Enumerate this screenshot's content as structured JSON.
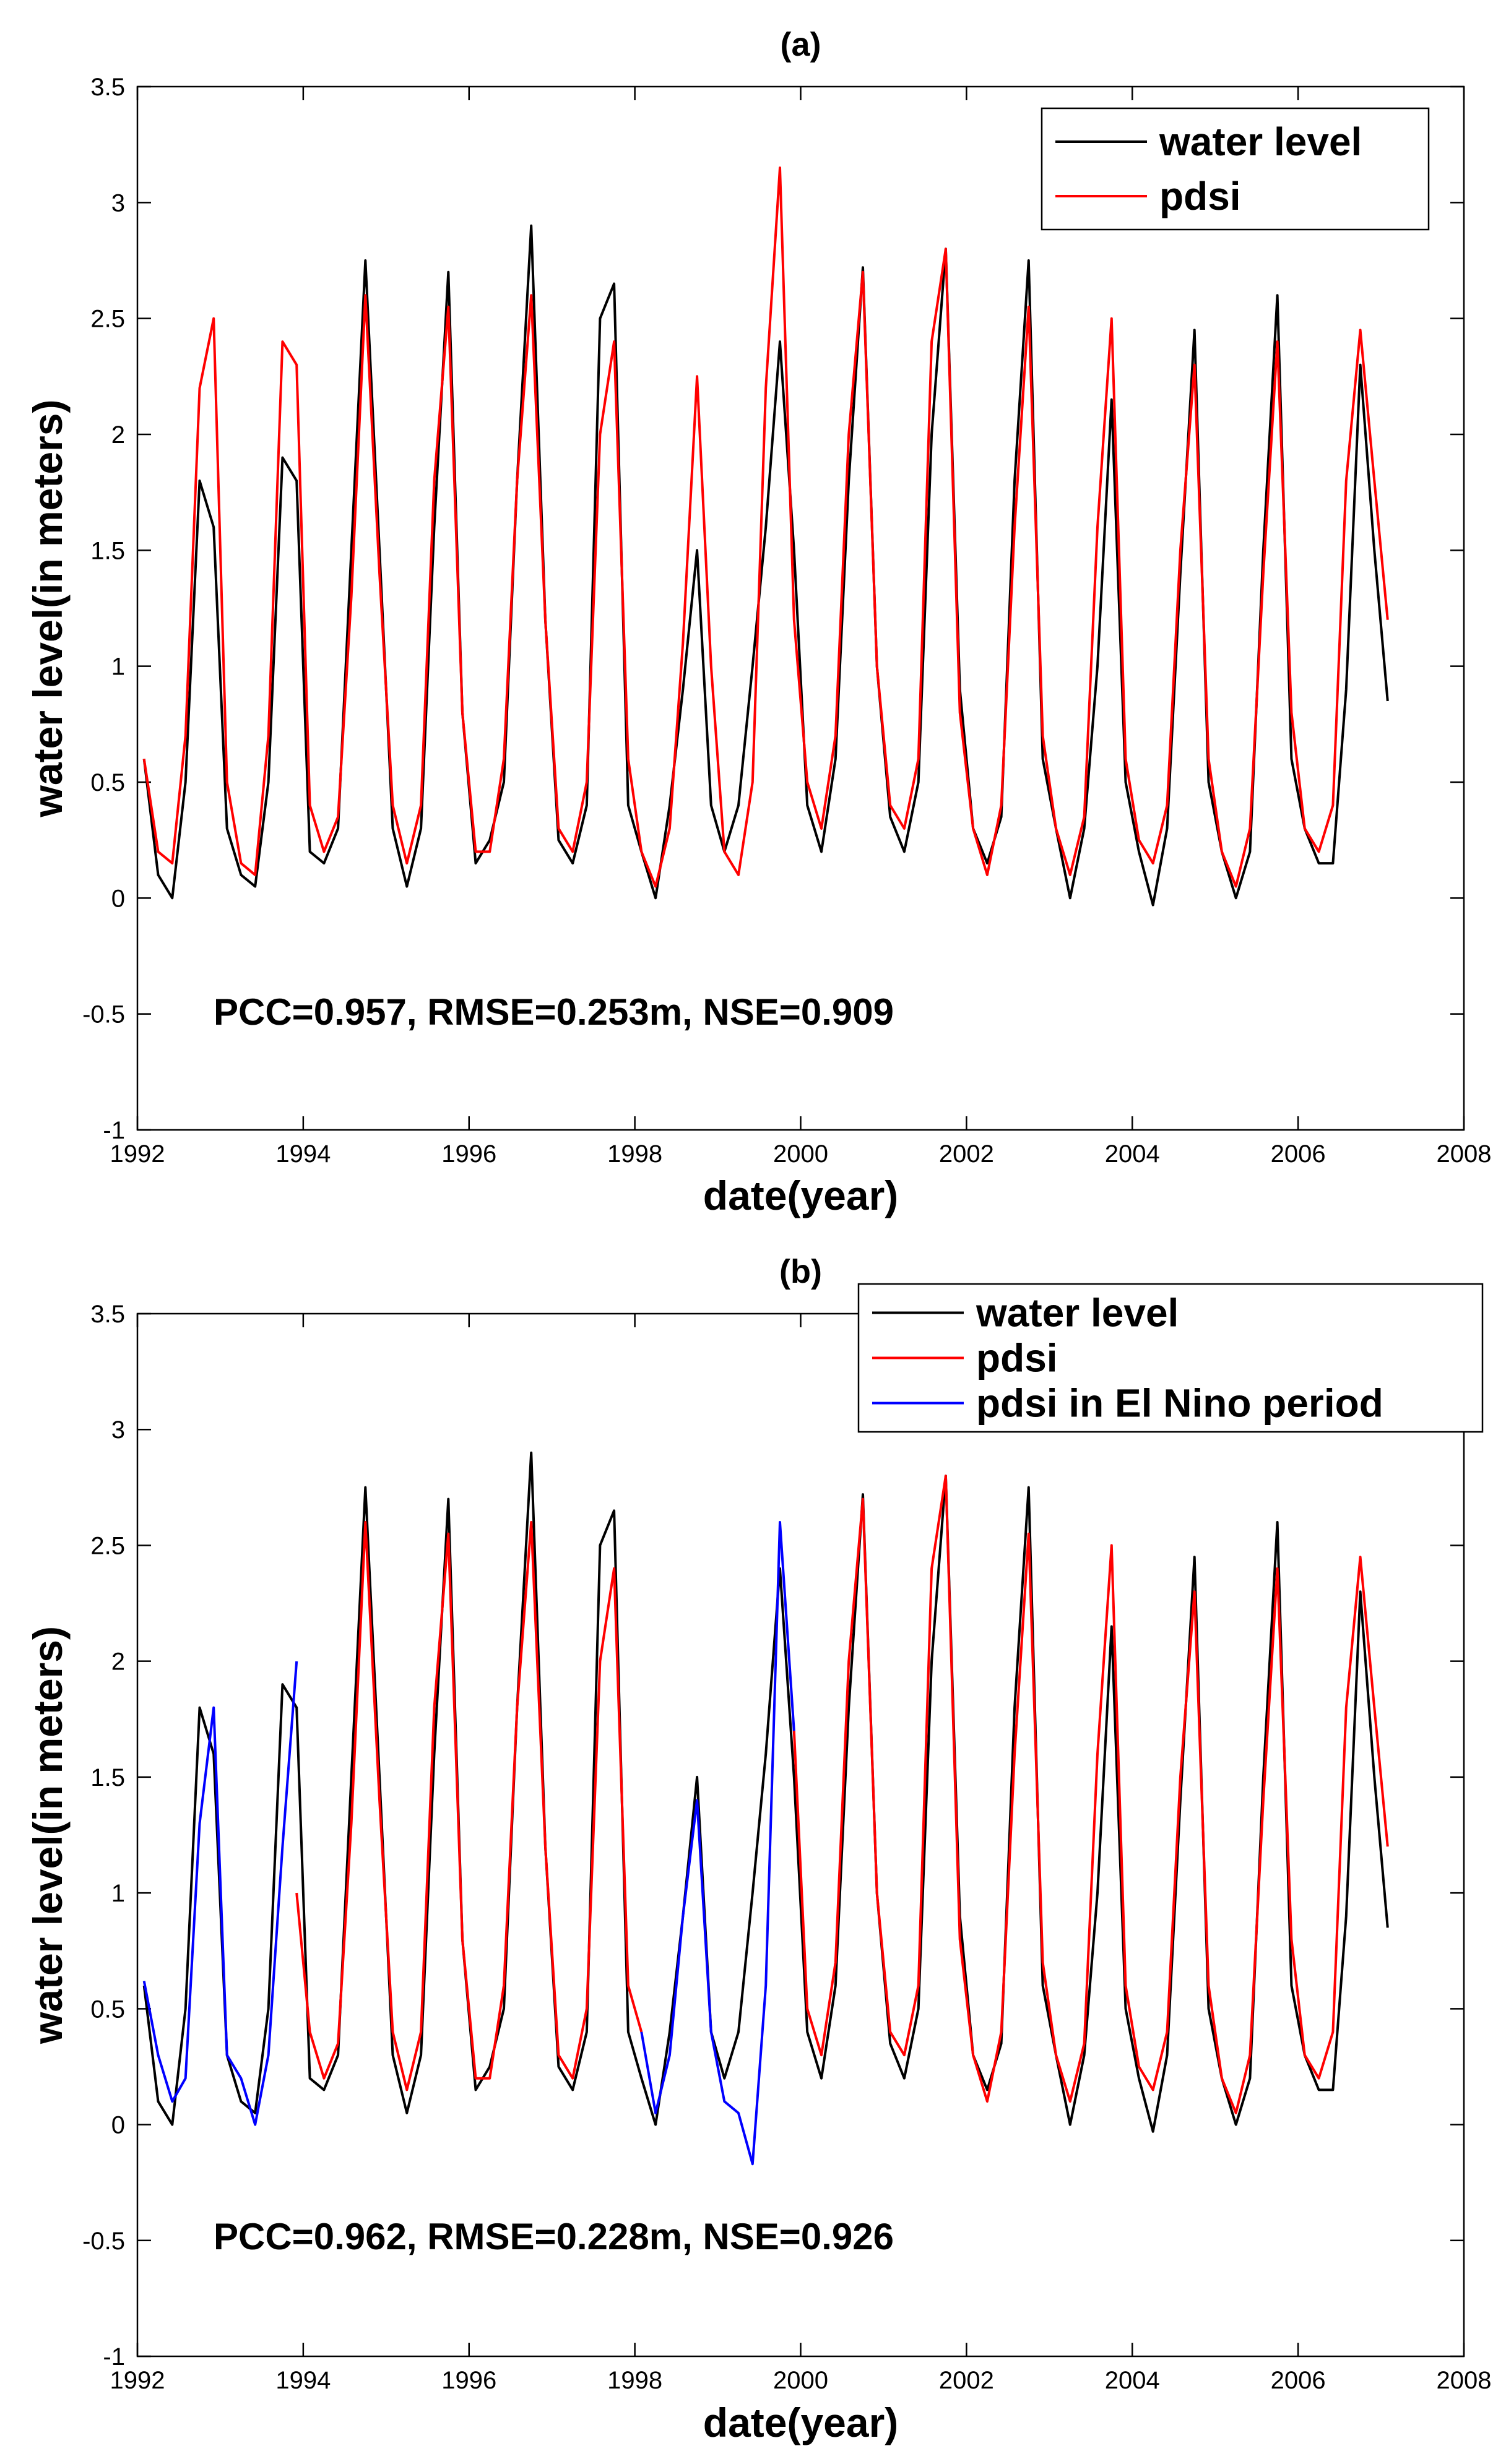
{
  "chart_data": [
    {
      "type": "line",
      "title": "(a)",
      "xlabel": "date(year)",
      "ylabel": "water level(in meters)",
      "xlim": [
        1992,
        2008
      ],
      "ylim": [
        -1,
        3.5
      ],
      "xticks": [
        "1992",
        "1994",
        "1996",
        "1998",
        "2000",
        "2002",
        "2004",
        "2006",
        "2008"
      ],
      "yticks": [
        "-1",
        "-0.5",
        "0",
        "0.5",
        "1",
        "1.5",
        "2",
        "2.5",
        "3",
        "3.5"
      ],
      "annotation": "PCC=0.957, RMSE=0.253m, NSE=0.909",
      "legend": {
        "position": "top-right",
        "entries": [
          "water level",
          "pdsi"
        ]
      },
      "series": [
        {
          "name": "water level",
          "color": "#000000",
          "x": [
            1992.08,
            1992.25,
            1992.42,
            1992.58,
            1992.75,
            1992.92,
            1993.08,
            1993.25,
            1993.42,
            1993.58,
            1993.75,
            1993.92,
            1994.08,
            1994.25,
            1994.42,
            1994.58,
            1994.75,
            1994.92,
            1995.08,
            1995.25,
            1995.42,
            1995.58,
            1995.75,
            1995.92,
            1996.08,
            1996.25,
            1996.42,
            1996.58,
            1996.75,
            1996.92,
            1997.08,
            1997.25,
            1997.42,
            1997.58,
            1997.75,
            1997.92,
            1998.08,
            1998.25,
            1998.42,
            1998.58,
            1998.75,
            1998.92,
            1999.08,
            1999.25,
            1999.42,
            1999.58,
            1999.75,
            1999.92,
            2000.08,
            2000.25,
            2000.42,
            2000.58,
            2000.75,
            2000.92,
            2001.08,
            2001.25,
            2001.42,
            2001.58,
            2001.75,
            2001.92,
            2002.08,
            2002.25,
            2002.42,
            2002.58,
            2002.75,
            2002.92,
            2003.08,
            2003.25,
            2003.42,
            2003.58,
            2003.75,
            2003.92,
            2004.08,
            2004.25,
            2004.42,
            2004.58,
            2004.75,
            2004.92,
            2005.08,
            2005.25,
            2005.42,
            2005.58,
            2005.75,
            2005.92,
            2006.08,
            2006.25,
            2006.42,
            2006.58,
            2006.75,
            2006.92,
            2007.08
          ],
          "y": [
            0.6,
            0.1,
            0.0,
            0.5,
            1.8,
            1.6,
            0.3,
            0.1,
            0.05,
            0.5,
            1.9,
            1.8,
            0.2,
            0.15,
            0.3,
            1.5,
            2.75,
            1.5,
            0.3,
            0.05,
            0.3,
            1.6,
            2.7,
            0.8,
            0.15,
            0.25,
            0.5,
            1.8,
            2.9,
            1.2,
            0.25,
            0.15,
            0.4,
            2.5,
            2.65,
            0.4,
            0.2,
            0.0,
            0.4,
            0.9,
            1.5,
            0.4,
            0.2,
            0.4,
            1.0,
            1.6,
            2.4,
            1.5,
            0.4,
            0.2,
            0.6,
            1.8,
            2.72,
            1.0,
            0.35,
            0.2,
            0.5,
            2.0,
            2.8,
            0.9,
            0.3,
            0.15,
            0.35,
            1.8,
            2.75,
            0.6,
            0.3,
            0.0,
            0.3,
            1.0,
            2.15,
            0.5,
            0.2,
            -0.03,
            0.3,
            1.4,
            2.45,
            0.5,
            0.2,
            0.0,
            0.2,
            1.5,
            2.6,
            0.6,
            0.3,
            0.15,
            0.15,
            0.9,
            2.3,
            1.5,
            0.85
          ]
        },
        {
          "name": "pdsi",
          "color": "#ff0000",
          "x": [
            1992.08,
            1992.25,
            1992.42,
            1992.58,
            1992.75,
            1992.92,
            1993.08,
            1993.25,
            1993.42,
            1993.58,
            1993.75,
            1993.92,
            1994.08,
            1994.25,
            1994.42,
            1994.58,
            1994.75,
            1994.92,
            1995.08,
            1995.25,
            1995.42,
            1995.58,
            1995.75,
            1995.92,
            1996.08,
            1996.25,
            1996.42,
            1996.58,
            1996.75,
            1996.92,
            1997.08,
            1997.25,
            1997.42,
            1997.58,
            1997.75,
            1997.92,
            1998.08,
            1998.25,
            1998.42,
            1998.58,
            1998.75,
            1998.92,
            1999.08,
            1999.25,
            1999.42,
            1999.58,
            1999.75,
            1999.92,
            2000.08,
            2000.25,
            2000.42,
            2000.58,
            2000.75,
            2000.92,
            2001.08,
            2001.25,
            2001.42,
            2001.58,
            2001.75,
            2001.92,
            2002.08,
            2002.25,
            2002.42,
            2002.58,
            2002.75,
            2002.92,
            2003.08,
            2003.25,
            2003.42,
            2003.58,
            2003.75,
            2003.92,
            2004.08,
            2004.25,
            2004.42,
            2004.58,
            2004.75,
            2004.92,
            2005.08,
            2005.25,
            2005.42,
            2005.58,
            2005.75,
            2005.92,
            2006.08,
            2006.25,
            2006.42,
            2006.58,
            2006.75,
            2006.92,
            2007.08
          ],
          "y": [
            0.6,
            0.2,
            0.15,
            0.7,
            2.2,
            2.5,
            0.5,
            0.15,
            0.1,
            0.7,
            2.4,
            2.3,
            0.4,
            0.2,
            0.35,
            1.3,
            2.6,
            1.4,
            0.4,
            0.15,
            0.4,
            1.8,
            2.55,
            0.8,
            0.2,
            0.2,
            0.6,
            1.8,
            2.6,
            1.2,
            0.3,
            0.2,
            0.5,
            2.0,
            2.4,
            0.6,
            0.2,
            0.05,
            0.3,
            1.1,
            2.25,
            1.0,
            0.2,
            0.1,
            0.5,
            2.2,
            3.15,
            1.2,
            0.5,
            0.3,
            0.7,
            2.0,
            2.7,
            1.0,
            0.4,
            0.3,
            0.6,
            2.4,
            2.8,
            0.8,
            0.3,
            0.1,
            0.4,
            1.6,
            2.55,
            0.7,
            0.3,
            0.1,
            0.35,
            1.6,
            2.5,
            0.6,
            0.25,
            0.15,
            0.4,
            1.5,
            2.3,
            0.6,
            0.2,
            0.05,
            0.3,
            1.4,
            2.4,
            0.8,
            0.3,
            0.2,
            0.4,
            1.8,
            2.45,
            1.8,
            1.2
          ]
        }
      ]
    },
    {
      "type": "line",
      "title": "(b)",
      "xlabel": "date(year)",
      "ylabel": "water level(in meters)",
      "xlim": [
        1992,
        2008
      ],
      "ylim": [
        -1,
        3.5
      ],
      "xticks": [
        "1992",
        "1994",
        "1996",
        "1998",
        "2000",
        "2002",
        "2004",
        "2006",
        "2008"
      ],
      "yticks": [
        "-1",
        "-0.5",
        "0",
        "0.5",
        "1",
        "1.5",
        "2",
        "2.5",
        "3",
        "3.5"
      ],
      "annotation": "PCC=0.962, RMSE=0.228m, NSE=0.926",
      "legend": {
        "position": "top-right",
        "entries": [
          "water level",
          "pdsi",
          "pdsi in El Nino period"
        ]
      },
      "series": [
        {
          "name": "water level",
          "color": "#000000",
          "x": [
            1992.08,
            1992.25,
            1992.42,
            1992.58,
            1992.75,
            1992.92,
            1993.08,
            1993.25,
            1993.42,
            1993.58,
            1993.75,
            1993.92,
            1994.08,
            1994.25,
            1994.42,
            1994.58,
            1994.75,
            1994.92,
            1995.08,
            1995.25,
            1995.42,
            1995.58,
            1995.75,
            1995.92,
            1996.08,
            1996.25,
            1996.42,
            1996.58,
            1996.75,
            1996.92,
            1997.08,
            1997.25,
            1997.42,
            1997.58,
            1997.75,
            1997.92,
            1998.08,
            1998.25,
            1998.42,
            1998.58,
            1998.75,
            1998.92,
            1999.08,
            1999.25,
            1999.42,
            1999.58,
            1999.75,
            1999.92,
            2000.08,
            2000.25,
            2000.42,
            2000.58,
            2000.75,
            2000.92,
            2001.08,
            2001.25,
            2001.42,
            2001.58,
            2001.75,
            2001.92,
            2002.08,
            2002.25,
            2002.42,
            2002.58,
            2002.75,
            2002.92,
            2003.08,
            2003.25,
            2003.42,
            2003.58,
            2003.75,
            2003.92,
            2004.08,
            2004.25,
            2004.42,
            2004.58,
            2004.75,
            2004.92,
            2005.08,
            2005.25,
            2005.42,
            2005.58,
            2005.75,
            2005.92,
            2006.08,
            2006.25,
            2006.42,
            2006.58,
            2006.75,
            2006.92,
            2007.08
          ],
          "y": [
            0.6,
            0.1,
            0.0,
            0.5,
            1.8,
            1.6,
            0.3,
            0.1,
            0.05,
            0.5,
            1.9,
            1.8,
            0.2,
            0.15,
            0.3,
            1.5,
            2.75,
            1.5,
            0.3,
            0.05,
            0.3,
            1.6,
            2.7,
            0.8,
            0.15,
            0.25,
            0.5,
            1.8,
            2.9,
            1.2,
            0.25,
            0.15,
            0.4,
            2.5,
            2.65,
            0.4,
            0.2,
            0.0,
            0.4,
            0.9,
            1.5,
            0.4,
            0.2,
            0.4,
            1.0,
            1.6,
            2.4,
            1.5,
            0.4,
            0.2,
            0.6,
            1.8,
            2.72,
            1.0,
            0.35,
            0.2,
            0.5,
            2.0,
            2.8,
            0.9,
            0.3,
            0.15,
            0.35,
            1.8,
            2.75,
            0.6,
            0.3,
            0.0,
            0.3,
            1.0,
            2.15,
            0.5,
            0.2,
            -0.03,
            0.3,
            1.4,
            2.45,
            0.5,
            0.2,
            0.0,
            0.2,
            1.5,
            2.6,
            0.6,
            0.3,
            0.15,
            0.15,
            0.9,
            2.3,
            1.5,
            0.85
          ]
        },
        {
          "name": "pdsi",
          "color": "#ff0000",
          "x": [
            1993.92,
            1994.08,
            1994.25,
            1994.42,
            1994.58,
            1994.75,
            1994.92,
            1995.08,
            1995.25,
            1995.42,
            1995.58,
            1995.75,
            1995.92,
            1996.08,
            1996.25,
            1996.42,
            1996.58,
            1996.75,
            1996.92,
            1997.08,
            1997.25,
            1997.42,
            1997.58,
            1997.75,
            1997.92,
            1998.08,
            null,
            1999.92,
            2000.08,
            2000.25,
            2000.42,
            2000.58,
            2000.75,
            2000.92,
            2001.08,
            2001.25,
            2001.42,
            2001.58,
            2001.75,
            2001.92,
            2002.08,
            2002.25,
            2002.42,
            2002.58,
            2002.75,
            2002.92,
            2003.08,
            2003.25,
            2003.42,
            2003.58,
            2003.75,
            2003.92,
            2004.08,
            2004.25,
            2004.42,
            2004.58,
            2004.75,
            2004.92,
            2005.08,
            2005.25,
            2005.42,
            2005.58,
            2005.75,
            2005.92,
            2006.08,
            2006.25,
            2006.42,
            2006.58,
            2006.75,
            2006.92,
            2007.08
          ],
          "y": [
            1.0,
            0.4,
            0.2,
            0.35,
            1.3,
            2.6,
            1.4,
            0.4,
            0.15,
            0.4,
            1.8,
            2.55,
            0.8,
            0.2,
            0.2,
            0.6,
            1.8,
            2.6,
            1.2,
            0.3,
            0.2,
            0.5,
            2.0,
            2.4,
            0.6,
            0.4,
            null,
            1.7,
            0.5,
            0.3,
            0.7,
            2.0,
            2.7,
            1.0,
            0.4,
            0.3,
            0.6,
            2.4,
            2.8,
            0.8,
            0.3,
            0.1,
            0.4,
            1.6,
            2.55,
            0.7,
            0.3,
            0.1,
            0.35,
            1.6,
            2.5,
            0.6,
            0.25,
            0.15,
            0.4,
            1.5,
            2.3,
            0.6,
            0.2,
            0.05,
            0.3,
            1.4,
            2.4,
            0.8,
            0.3,
            0.2,
            0.4,
            1.8,
            2.45,
            1.8,
            1.2
          ]
        },
        {
          "name": "pdsi in El Nino period",
          "color": "#0000ff",
          "x": [
            1992.08,
            1992.25,
            1992.42,
            1992.58,
            1992.75,
            1992.92,
            1993.08,
            1993.25,
            1993.42,
            1993.58,
            1993.75,
            1993.92,
            null,
            1998.08,
            1998.25,
            1998.42,
            1998.58,
            1998.75,
            1998.92,
            1999.08,
            1999.25,
            1999.42,
            1999.58,
            1999.75,
            1999.92
          ],
          "y": [
            0.62,
            0.3,
            0.1,
            0.2,
            1.3,
            1.8,
            0.3,
            0.2,
            0.0,
            0.3,
            1.2,
            2.0,
            null,
            0.4,
            0.05,
            0.3,
            0.9,
            1.4,
            0.4,
            0.1,
            0.05,
            -0.17,
            0.6,
            2.6,
            1.7
          ]
        }
      ]
    }
  ]
}
